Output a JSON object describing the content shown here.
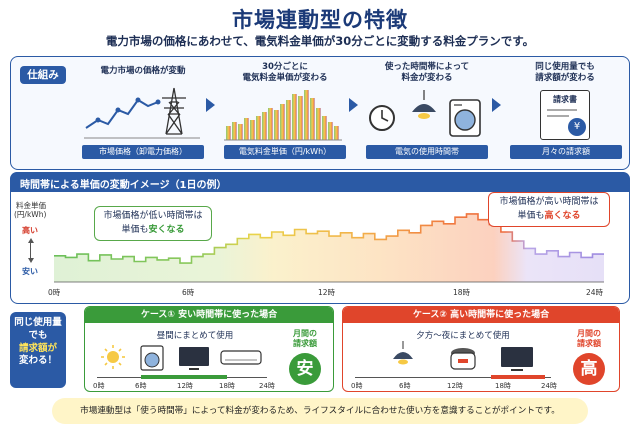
{
  "title": "市場連動型の特徴",
  "subtitle": "電力市場の価格にあわせて、電気料金単価が30分ごとに変動する料金プランです。",
  "mechanism": {
    "tag": "仕組み",
    "steps": [
      {
        "label": "電力市場の価格が変動",
        "bar": "市場価格（卸電力価格）"
      },
      {
        "label": "30分ごとに\n電気料金単価が変わる",
        "bar": "電気料金単価（円/kWh）"
      },
      {
        "label": "使った時間帯によって\n料金が変わる",
        "bar": "電気の使用時間帯"
      },
      {
        "label": "同じ使用量でも\n請求額が変わる",
        "bar": "月々の請求額"
      }
    ],
    "bill_text": "請求書",
    "yen": "¥"
  },
  "price_chart": {
    "header": "時間帯による単価の変動イメージ（1日の例）",
    "ylabel_line1": "料金単価",
    "ylabel_line2": "(円/kWh)",
    "high": "高い",
    "low": "安い",
    "x_ticks": [
      "0時",
      "6時",
      "12時",
      "18時",
      "24時"
    ],
    "callout_low_1": "市場価格が低い時間帯は",
    "callout_low_2a": "単価も",
    "callout_low_2b": "安くなる",
    "callout_high_1": "市場価格が高い時間帯は",
    "callout_high_2a": "単価も",
    "callout_high_2b": "高くなる"
  },
  "chart_data": {
    "type": "line",
    "x_unit": "hour",
    "x": [
      0,
      0.5,
      1,
      1.5,
      2,
      2.5,
      3,
      3.5,
      4,
      4.5,
      5,
      5.5,
      6,
      6.5,
      7,
      7.5,
      8,
      8.5,
      9,
      9.5,
      10,
      10.5,
      11,
      11.5,
      12,
      12.5,
      13,
      13.5,
      14,
      14.5,
      15,
      15.5,
      16,
      16.5,
      17,
      17.5,
      18,
      18.5,
      19,
      19.5,
      20,
      20.5,
      21,
      21.5,
      22,
      22.5,
      23,
      23.5
    ],
    "values": [
      3.2,
      3.0,
      3.4,
      2.6,
      3.3,
      2.8,
      3.1,
      2.5,
      3.0,
      2.7,
      2.9,
      2.3,
      3.1,
      3.4,
      4.2,
      4.6,
      5.3,
      5.8,
      5.4,
      6.1,
      5.7,
      6.4,
      5.9,
      6.2,
      5.6,
      6.0,
      5.4,
      5.9,
      5.2,
      5.6,
      6.3,
      6.0,
      6.9,
      7.4,
      7.1,
      7.9,
      8.3,
      7.6,
      7.0,
      6.1,
      5.0,
      4.1,
      3.4,
      3.8,
      3.1,
      3.6,
      3.0,
      3.4
    ],
    "xlim": [
      0,
      24
    ],
    "ylim": [
      0,
      10
    ],
    "note": "illustrative image, no numeric y-axis printed"
  },
  "cases": {
    "side_1": "同じ使用量",
    "side_2": "でも",
    "side_3": "請求額が",
    "side_4": "変わる！",
    "case1": {
      "title": "ケース① 安い時間帯に使った場合",
      "sub": "昼間にまとめて使用",
      "ticks": [
        "0時",
        "6時",
        "12時",
        "18時",
        "24時"
      ],
      "bill_label_1": "月間の",
      "bill_label_2": "請求額",
      "badge": "安",
      "color": "#3a9b3a"
    },
    "case2": {
      "title": "ケース② 高い時間帯に使った場合",
      "sub": "夕方〜夜にまとめて使用",
      "ticks": [
        "0時",
        "6時",
        "12時",
        "18時",
        "24時"
      ],
      "bill_label_1": "月間の",
      "bill_label_2": "請求額",
      "badge": "高",
      "color": "#e0452b"
    }
  },
  "tip": "市場連動型は「使う時間帯」によって料金が変わるため、ライフスタイルに合わせた使い方を意識することがポイントです。"
}
